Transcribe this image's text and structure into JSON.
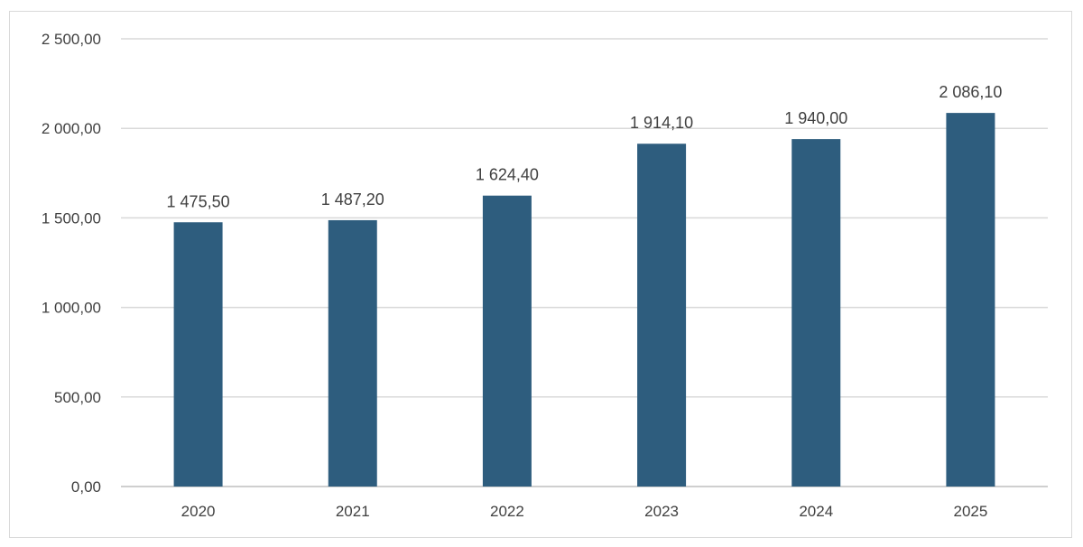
{
  "chart_data": {
    "type": "bar",
    "categories": [
      "2020",
      "2021",
      "2022",
      "2023",
      "2024",
      "2025"
    ],
    "values": [
      1475.5,
      1487.2,
      1624.4,
      1914.1,
      1940.0,
      2086.1
    ],
    "value_labels": [
      "1 475,50",
      "1 487,20",
      "1 624,40",
      "1 914,10",
      "1 940,00",
      "2 086,10"
    ],
    "yticks": [
      0,
      500,
      1000,
      1500,
      2000,
      2500
    ],
    "ytick_labels": [
      "0,00",
      "500,00",
      "1 000,00",
      "1 500,00",
      "2 000,00",
      "2 500,00"
    ],
    "ylim": [
      0,
      2500
    ],
    "title": "",
    "xlabel": "",
    "ylabel": "",
    "grid": true,
    "legend": "none",
    "bar_color": "#2e5d7e"
  }
}
